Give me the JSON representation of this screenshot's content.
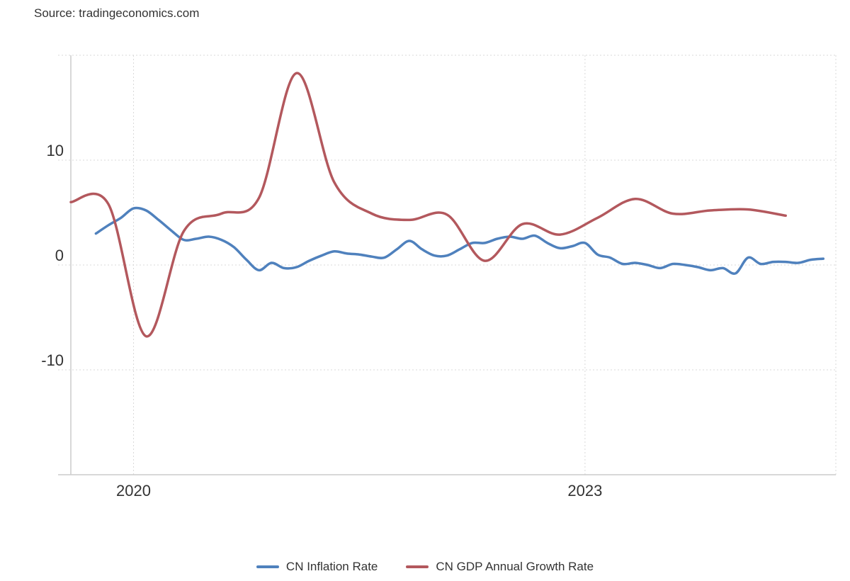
{
  "source_text": "Source: tradingeconomics.com",
  "colors": {
    "inflation": "#4f81bd",
    "gdp": "#b3585d",
    "grid": "#d9d9d9",
    "axis": "#cccccc"
  },
  "chart_data": {
    "type": "line",
    "title": "",
    "xlabel": "",
    "ylabel": "",
    "xlim": [
      "2019-08",
      "2024-09"
    ],
    "ylim": [
      -20,
      20
    ],
    "grid": true,
    "legend_position": "bottom-center",
    "y_ticks": [
      {
        "value": 10,
        "label": "10"
      },
      {
        "value": 0,
        "label": "0"
      },
      {
        "value": -10,
        "label": "-10"
      }
    ],
    "x_ticks": [
      {
        "value": "2020-01",
        "label": "2020"
      },
      {
        "value": "2023-01",
        "label": "2023"
      }
    ],
    "series": [
      {
        "name": "CN Inflation Rate",
        "color": "#4f81bd",
        "points": [
          [
            "2019-10",
            3.0
          ],
          [
            "2019-11",
            3.8
          ],
          [
            "2019-12",
            4.5
          ],
          [
            "2020-01",
            5.4
          ],
          [
            "2020-02",
            5.2
          ],
          [
            "2020-03",
            4.3
          ],
          [
            "2020-04",
            3.3
          ],
          [
            "2020-05",
            2.4
          ],
          [
            "2020-06",
            2.5
          ],
          [
            "2020-07",
            2.7
          ],
          [
            "2020-08",
            2.4
          ],
          [
            "2020-09",
            1.7
          ],
          [
            "2020-10",
            0.5
          ],
          [
            "2020-11",
            -0.5
          ],
          [
            "2020-12",
            0.2
          ],
          [
            "2021-01",
            -0.3
          ],
          [
            "2021-02",
            -0.2
          ],
          [
            "2021-03",
            0.4
          ],
          [
            "2021-04",
            0.9
          ],
          [
            "2021-05",
            1.3
          ],
          [
            "2021-06",
            1.1
          ],
          [
            "2021-07",
            1.0
          ],
          [
            "2021-08",
            0.8
          ],
          [
            "2021-09",
            0.7
          ],
          [
            "2021-10",
            1.5
          ],
          [
            "2021-11",
            2.3
          ],
          [
            "2021-12",
            1.5
          ],
          [
            "2022-01",
            0.9
          ],
          [
            "2022-02",
            0.9
          ],
          [
            "2022-03",
            1.5
          ],
          [
            "2022-04",
            2.1
          ],
          [
            "2022-05",
            2.1
          ],
          [
            "2022-06",
            2.5
          ],
          [
            "2022-07",
            2.7
          ],
          [
            "2022-08",
            2.5
          ],
          [
            "2022-09",
            2.8
          ],
          [
            "2022-10",
            2.1
          ],
          [
            "2022-11",
            1.6
          ],
          [
            "2022-12",
            1.8
          ],
          [
            "2023-01",
            2.1
          ],
          [
            "2023-02",
            1.0
          ],
          [
            "2023-03",
            0.7
          ],
          [
            "2023-04",
            0.1
          ],
          [
            "2023-05",
            0.2
          ],
          [
            "2023-06",
            0.0
          ],
          [
            "2023-07",
            -0.3
          ],
          [
            "2023-08",
            0.1
          ],
          [
            "2023-09",
            0.0
          ],
          [
            "2023-10",
            -0.2
          ],
          [
            "2023-11",
            -0.5
          ],
          [
            "2023-12",
            -0.3
          ],
          [
            "2024-01",
            -0.8
          ],
          [
            "2024-02",
            0.7
          ],
          [
            "2024-03",
            0.1
          ],
          [
            "2024-04",
            0.3
          ],
          [
            "2024-05",
            0.3
          ],
          [
            "2024-06",
            0.2
          ],
          [
            "2024-07",
            0.5
          ],
          [
            "2024-08",
            0.6
          ]
        ]
      },
      {
        "name": "CN GDP Annual Growth Rate",
        "color": "#b3585d",
        "points": [
          [
            "2019-08",
            6.0
          ],
          [
            "2019-11",
            5.8
          ],
          [
            "2020-02",
            -6.8
          ],
          [
            "2020-05",
            3.2
          ],
          [
            "2020-08",
            4.9
          ],
          [
            "2020-11",
            6.4
          ],
          [
            "2021-02",
            18.3
          ],
          [
            "2021-05",
            7.9
          ],
          [
            "2021-08",
            4.9
          ],
          [
            "2021-11",
            4.3
          ],
          [
            "2022-02",
            4.8
          ],
          [
            "2022-05",
            0.4
          ],
          [
            "2022-08",
            3.9
          ],
          [
            "2022-11",
            2.9
          ],
          [
            "2023-02",
            4.5
          ],
          [
            "2023-05",
            6.3
          ],
          [
            "2023-08",
            4.9
          ],
          [
            "2023-11",
            5.2
          ],
          [
            "2024-02",
            5.3
          ],
          [
            "2024-05",
            4.7
          ]
        ]
      }
    ]
  }
}
